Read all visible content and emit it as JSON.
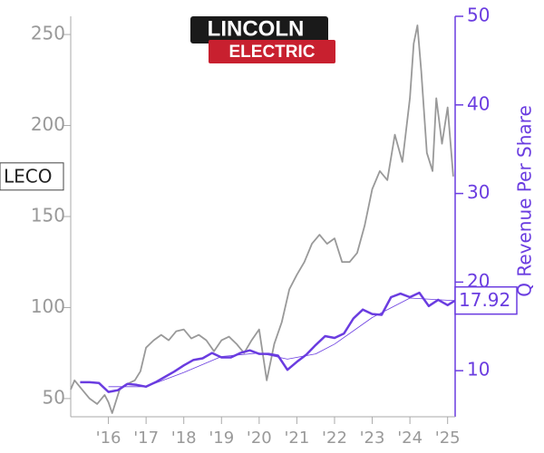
{
  "chart_data": {
    "type": "line",
    "logo_top": "LINCOLN",
    "logo_bottom": "ELECTRIC",
    "y2label": "Q Revenue Per Share",
    "xlim": [
      2015,
      2025.2
    ],
    "xticks": [
      {
        "value": 2016,
        "label": "'16"
      },
      {
        "value": 2017,
        "label": "'17"
      },
      {
        "value": 2018,
        "label": "'18"
      },
      {
        "value": 2019,
        "label": "'19"
      },
      {
        "value": 2020,
        "label": "'20"
      },
      {
        "value": 2021,
        "label": "'21"
      },
      {
        "value": 2022,
        "label": "'22"
      },
      {
        "value": 2023,
        "label": "'23"
      },
      {
        "value": 2024,
        "label": "'24"
      },
      {
        "value": 2025,
        "label": "'25"
      }
    ],
    "ylim": [
      40,
      260
    ],
    "yticks": [
      50,
      100,
      150,
      200,
      250
    ],
    "y2lim": [
      4.8,
      50
    ],
    "y2ticks": [
      10,
      20,
      30,
      40,
      50
    ],
    "series": [
      {
        "name": "LECO",
        "color": "#999999",
        "x": [
          2015.0,
          2015.1,
          2015.3,
          2015.5,
          2015.7,
          2015.9,
          2016.0,
          2016.1,
          2016.3,
          2016.5,
          2016.7,
          2016.85,
          2017.0,
          2017.2,
          2017.4,
          2017.6,
          2017.8,
          2018.0,
          2018.2,
          2018.4,
          2018.6,
          2018.8,
          2019.0,
          2019.2,
          2019.4,
          2019.6,
          2019.8,
          2020.0,
          2020.2,
          2020.4,
          2020.6,
          2020.8,
          2021.0,
          2021.2,
          2021.4,
          2021.6,
          2021.8,
          2022.0,
          2022.2,
          2022.4,
          2022.6,
          2022.8,
          2023.0,
          2023.2,
          2023.4,
          2023.6,
          2023.8,
          2024.0,
          2024.1,
          2024.2,
          2024.3,
          2024.45,
          2024.6,
          2024.7,
          2024.85,
          2025.0,
          2025.15
        ],
        "values": [
          55,
          60,
          55,
          50,
          47,
          52,
          48,
          42,
          55,
          58,
          60,
          65,
          78,
          82,
          85,
          82,
          87,
          88,
          83,
          85,
          82,
          76,
          82,
          84,
          80,
          75,
          82,
          88,
          60,
          80,
          92,
          110,
          118,
          125,
          135,
          140,
          135,
          138,
          125,
          125,
          130,
          145,
          165,
          175,
          170,
          195,
          180,
          215,
          245,
          255,
          230,
          185,
          175,
          215,
          190,
          210,
          172
        ]
      },
      {
        "name": "17.92",
        "color": "#6a3ce0",
        "axis": "y2",
        "x": [
          2015.25,
          2015.5,
          2015.75,
          2016.0,
          2016.25,
          2016.5,
          2016.75,
          2017.0,
          2017.25,
          2017.5,
          2017.75,
          2018.0,
          2018.25,
          2018.5,
          2018.75,
          2019.0,
          2019.25,
          2019.5,
          2019.75,
          2020.0,
          2020.25,
          2020.5,
          2020.75,
          2021.0,
          2021.25,
          2021.5,
          2021.75,
          2022.0,
          2022.25,
          2022.5,
          2022.75,
          2023.0,
          2023.25,
          2023.5,
          2023.75,
          2024.0,
          2024.25,
          2024.5,
          2024.75,
          2025.0,
          2025.2
        ],
        "values": [
          8.7,
          8.7,
          8.6,
          7.6,
          7.8,
          8.5,
          8.4,
          8.2,
          8.7,
          9.3,
          9.9,
          10.6,
          11.2,
          11.4,
          12.0,
          11.5,
          11.5,
          12.0,
          12.3,
          11.9,
          11.9,
          11.7,
          10.1,
          11.0,
          11.8,
          12.9,
          13.9,
          13.7,
          14.2,
          15.9,
          16.9,
          16.4,
          16.3,
          18.3,
          18.7,
          18.3,
          18.8,
          17.3,
          18.0,
          17.4,
          17.92
        ]
      },
      {
        "color": "#6a3ce0",
        "axis": "y2",
        "x": [
          2016.0,
          2017.0,
          2018.0,
          2019.0,
          2020.0,
          2020.75,
          2021.5,
          2022.0,
          2023.0,
          2024.0,
          2025.2
        ],
        "values": [
          8.2,
          8.2,
          9.8,
          11.6,
          12.0,
          11.3,
          11.9,
          13.0,
          16.0,
          18.2,
          17.9
        ]
      }
    ]
  }
}
